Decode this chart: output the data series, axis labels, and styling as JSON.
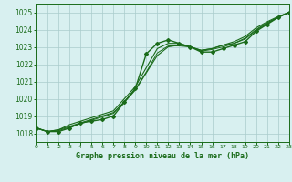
{
  "title": "Graphe pression niveau de la mer (hPa)",
  "background_color": "#d8f0f0",
  "grid_color": "#aacccc",
  "line_color": "#1a6b1a",
  "x_min": 0,
  "x_max": 23,
  "y_min": 1017.5,
  "y_max": 1025.5,
  "yticks": [
    1018,
    1019,
    1020,
    1021,
    1022,
    1023,
    1024,
    1025
  ],
  "xticks": [
    0,
    1,
    2,
    3,
    4,
    5,
    6,
    7,
    8,
    9,
    10,
    11,
    12,
    13,
    14,
    15,
    16,
    17,
    18,
    19,
    20,
    21,
    22,
    23
  ],
  "series": [
    {
      "x": [
        0,
        1,
        2,
        3,
        4,
        5,
        6,
        7,
        8,
        9,
        10,
        11,
        12,
        13,
        14,
        15,
        16,
        17,
        18,
        19,
        20,
        21,
        22,
        23
      ],
      "y": [
        1018.3,
        1018.1,
        1018.1,
        1018.3,
        1018.6,
        1018.7,
        1018.8,
        1019.0,
        1019.8,
        1020.6,
        1022.6,
        1023.2,
        1023.4,
        1023.2,
        1023.0,
        1022.7,
        1022.7,
        1022.9,
        1023.1,
        1023.3,
        1023.9,
        1024.3,
        1024.7,
        1025.0
      ],
      "marker": "D",
      "markersize": 2.0,
      "linewidth": 1.0
    },
    {
      "x": [
        0,
        1,
        2,
        3,
        4,
        5,
        6,
        7,
        8,
        9,
        10,
        11,
        12,
        13,
        14,
        15,
        16,
        17,
        18,
        19,
        20,
        21,
        22,
        23
      ],
      "y": [
        1018.3,
        1018.1,
        1018.2,
        1018.4,
        1018.6,
        1018.8,
        1019.0,
        1019.2,
        1019.8,
        1020.5,
        1021.5,
        1022.5,
        1023.0,
        1023.1,
        1023.0,
        1022.8,
        1022.9,
        1023.1,
        1023.2,
        1023.5,
        1024.0,
        1024.4,
        1024.7,
        1025.0
      ],
      "marker": null,
      "markersize": 0,
      "linewidth": 0.8
    },
    {
      "x": [
        0,
        1,
        2,
        3,
        4,
        5,
        6,
        7,
        8,
        9,
        10,
        11,
        12,
        13,
        14,
        15,
        16,
        17,
        18,
        19,
        20,
        21,
        22,
        23
      ],
      "y": [
        1018.3,
        1018.1,
        1018.2,
        1018.5,
        1018.7,
        1018.9,
        1019.1,
        1019.3,
        1020.0,
        1020.7,
        1021.8,
        1022.9,
        1023.2,
        1023.2,
        1023.0,
        1022.8,
        1022.9,
        1023.1,
        1023.3,
        1023.6,
        1024.1,
        1024.45,
        1024.75,
        1025.0
      ],
      "marker": null,
      "markersize": 0,
      "linewidth": 0.8
    },
    {
      "x": [
        0,
        1,
        2,
        3,
        4,
        5,
        6,
        7,
        8,
        9,
        10,
        11,
        12,
        13,
        14,
        15,
        16,
        17,
        18,
        19,
        20,
        21,
        22,
        23
      ],
      "y": [
        1018.3,
        1018.1,
        1018.15,
        1018.35,
        1018.55,
        1018.75,
        1018.95,
        1019.15,
        1019.85,
        1020.55,
        1021.55,
        1022.65,
        1023.05,
        1023.05,
        1023.0,
        1022.75,
        1022.85,
        1023.0,
        1023.2,
        1023.45,
        1023.95,
        1024.35,
        1024.7,
        1025.0
      ],
      "marker": null,
      "markersize": 0,
      "linewidth": 0.7
    }
  ]
}
